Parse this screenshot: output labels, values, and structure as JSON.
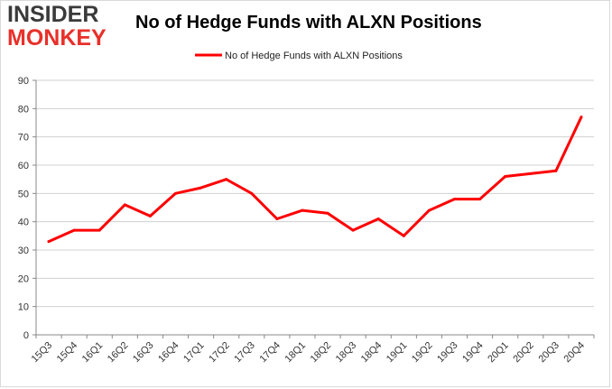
{
  "logo": {
    "line1": "INSIDER",
    "line2": "MONKEY"
  },
  "chart_data": {
    "type": "line",
    "title": "No of Hedge Funds with ALXN Positions",
    "xlabel": "",
    "ylabel": "",
    "categories": [
      "15Q3",
      "15Q4",
      "16Q1",
      "16Q2",
      "16Q3",
      "16Q4",
      "17Q1",
      "17Q2",
      "17Q3",
      "17Q4",
      "18Q1",
      "18Q2",
      "18Q3",
      "18Q4",
      "19Q1",
      "19Q2",
      "19Q3",
      "19Q4",
      "20Q1",
      "20Q2",
      "20Q3",
      "20Q4"
    ],
    "series": [
      {
        "name": "No of Hedge Funds with ALXN Positions",
        "color": "#ff0000",
        "values": [
          33,
          37,
          37,
          46,
          42,
          50,
          52,
          55,
          50,
          41,
          44,
          43,
          37,
          41,
          35,
          44,
          48,
          48,
          56,
          57,
          58,
          77
        ]
      }
    ],
    "ylim": [
      0,
      90
    ],
    "yticks": [
      0,
      10,
      20,
      30,
      40,
      50,
      60,
      70,
      80,
      90
    ],
    "grid": true,
    "legend": "top-center"
  }
}
